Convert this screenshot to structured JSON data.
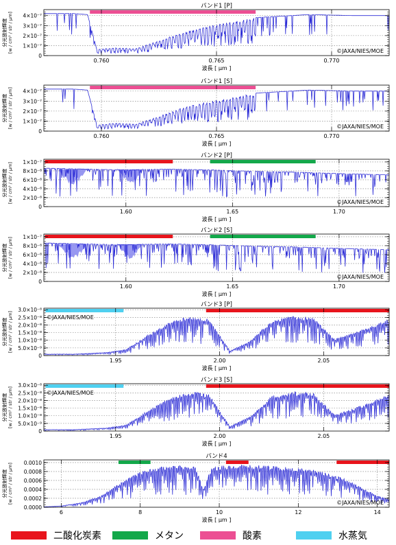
{
  "figure": {
    "copyright": "©JAXA/NIES/MOE",
    "line_color": "#2b2bd6",
    "fill_color": "#8c8cf0"
  },
  "legend": {
    "items": [
      {
        "label": "二酸化炭素",
        "color": "#e8141c"
      },
      {
        "label": "メタン",
        "color": "#13a84a"
      },
      {
        "label": "酸素",
        "color": "#ec4f93"
      },
      {
        "label": "水蒸気",
        "color": "#4fd0f0"
      }
    ]
  },
  "chart_data": [
    {
      "type": "line",
      "title": "バンド1 [P]",
      "xlabel": "波長 [ μm ]",
      "ylabel": [
        "分光放射輝度",
        "[w / cm² / str / μm]"
      ],
      "xlim": [
        0.7575,
        0.7725
      ],
      "ylim": [
        0,
        4.6e-07
      ],
      "xticks": [
        0.76,
        0.765,
        0.77
      ],
      "xtick_labels": [
        "0.760",
        "0.765",
        "0.770"
      ],
      "yticks": [
        0,
        1e-07,
        2e-07,
        3e-07,
        4e-07
      ],
      "ytick_labels": [
        "0",
        "1×10⁻⁷",
        "2×10⁻⁷",
        "3×10⁻⁷",
        "4×10⁻⁷"
      ],
      "copyright_position": "bottom-right",
      "bands": [
        {
          "gas": "酸素",
          "x": [
            0.7595,
            0.7667
          ],
          "color": "#ec4f93"
        }
      ],
      "series": [
        {
          "x": [
            0.7575,
            0.7588,
            0.7594,
            0.7598,
            0.7605,
            0.7615,
            0.7625,
            0.7635,
            0.7645,
            0.7655,
            0.7667,
            0.769,
            0.771,
            0.7725
          ],
          "values": [
            4.2e-07,
            4.2e-07,
            4.1e-07,
            6e-08,
            8e-08,
            7e-08,
            1.5e-07,
            2.3e-07,
            2.9e-07,
            3.3e-07,
            3.8e-07,
            4.1e-07,
            4e-07,
            4e-07
          ]
        }
      ]
    },
    {
      "type": "line",
      "title": "バンド1 [S]",
      "xlabel": "波長 [ μm ]",
      "ylabel": [
        "分光放射輝度",
        "[w / cm² / str / μm]"
      ],
      "xlim": [
        0.7575,
        0.7725
      ],
      "ylim": [
        0,
        4.6e-07
      ],
      "xticks": [
        0.76,
        0.765,
        0.77
      ],
      "xtick_labels": [
        "0.760",
        "0.765",
        "0.770"
      ],
      "yticks": [
        0,
        1e-07,
        2e-07,
        3e-07,
        4e-07
      ],
      "ytick_labels": [
        "0",
        "1×10⁻⁷",
        "2×10⁻⁷",
        "3×10⁻⁷",
        "4×10⁻⁷"
      ],
      "copyright_position": "bottom-right",
      "bands": [
        {
          "gas": "酸素",
          "x": [
            0.7595,
            0.7667
          ],
          "color": "#ec4f93"
        }
      ],
      "series": [
        {
          "x": [
            0.7575,
            0.7588,
            0.7594,
            0.7598,
            0.7605,
            0.7615,
            0.7625,
            0.7635,
            0.7645,
            0.7655,
            0.7667,
            0.769,
            0.771,
            0.7725
          ],
          "values": [
            4.2e-07,
            4.2e-07,
            4.1e-07,
            6e-08,
            8e-08,
            7e-08,
            1.5e-07,
            2.3e-07,
            2.9e-07,
            3.3e-07,
            3.8e-07,
            4.1e-07,
            4e-07,
            4e-07
          ]
        }
      ]
    },
    {
      "type": "line",
      "title": "バンド2 [P]",
      "xlabel": "波長 [ μm ]",
      "ylabel": [
        "分光放射輝度",
        "[w / cm² / str / μm]"
      ],
      "xlim": [
        1.5615,
        1.7235
      ],
      "ylim": [
        0,
        1.06e-07
      ],
      "xticks": [
        1.6,
        1.65,
        1.7
      ],
      "xtick_labels": [
        "1.60",
        "1.65",
        "1.70"
      ],
      "yticks": [
        0,
        2e-08,
        4e-08,
        6e-08,
        8e-08,
        1e-07
      ],
      "ytick_labels": [
        "0",
        "2×10⁻⁸",
        "4×10⁻⁸",
        "6×10⁻⁸",
        "8×10⁻⁸",
        "1×10⁻⁷"
      ],
      "copyright_position": "bottom-right",
      "bands": [
        {
          "gas": "二酸化炭素",
          "x": [
            1.562,
            1.622
          ],
          "color": "#e8141c"
        },
        {
          "gas": "メタン",
          "x": [
            1.6395,
            1.689
          ],
          "color": "#13a84a"
        }
      ],
      "series": [
        {
          "x": [
            1.5615,
            1.58,
            1.6,
            1.62,
            1.64,
            1.66,
            1.68,
            1.7,
            1.7235
          ],
          "values": [
            8.6e-08,
            8.4e-08,
            8.2e-08,
            8.4e-08,
            8.2e-08,
            7.9e-08,
            7.7e-08,
            7.4e-08,
            7.1e-08
          ]
        }
      ]
    },
    {
      "type": "line",
      "title": "バンド2 [S]",
      "xlabel": "波長 [ μm ]",
      "ylabel": [
        "分光放射輝度",
        "[w / cm² / str / μm]"
      ],
      "xlim": [
        1.5615,
        1.7235
      ],
      "ylim": [
        0,
        1.06e-07
      ],
      "xticks": [
        1.6,
        1.65,
        1.7
      ],
      "xtick_labels": [
        "1.60",
        "1.65",
        "1.70"
      ],
      "yticks": [
        0,
        2e-08,
        4e-08,
        6e-08,
        8e-08,
        1e-07
      ],
      "ytick_labels": [
        "0",
        "2×10⁻⁸",
        "4×10⁻⁸",
        "6×10⁻⁸",
        "8×10⁻⁸",
        "1×10⁻⁷"
      ],
      "copyright_position": "bottom-right",
      "bands": [
        {
          "gas": "二酸化炭素",
          "x": [
            1.562,
            1.622
          ],
          "color": "#e8141c"
        },
        {
          "gas": "メタン",
          "x": [
            1.6395,
            1.689
          ],
          "color": "#13a84a"
        }
      ],
      "series": [
        {
          "x": [
            1.5615,
            1.58,
            1.6,
            1.62,
            1.64,
            1.66,
            1.68,
            1.7,
            1.7235
          ],
          "values": [
            8.6e-08,
            8.4e-08,
            8.2e-08,
            8.4e-08,
            8.2e-08,
            7.9e-08,
            7.7e-08,
            7.4e-08,
            7.1e-08
          ]
        }
      ]
    },
    {
      "type": "line",
      "title": "バンド3 [P]",
      "xlabel": "波長 [ μm ]",
      "ylabel": [
        "分光放射輝度",
        "[w / cm² / str / μm]"
      ],
      "xlim": [
        1.9155,
        2.0815
      ],
      "ylim": [
        0,
        3.1e-08
      ],
      "xticks": [
        1.95,
        2.0,
        2.05
      ],
      "xtick_labels": [
        "1.95",
        "2.00",
        "2.05"
      ],
      "yticks": [
        0,
        5e-09,
        1e-08,
        1.5e-08,
        2e-08,
        2.5e-08,
        3e-08
      ],
      "ytick_labels": [
        "0",
        "5.0×10⁻⁹",
        "1.0×10⁻⁸",
        "1.5×10⁻⁸",
        "2.0×10⁻⁸",
        "2.5×10⁻⁸",
        "3.0×10⁻⁸"
      ],
      "copyright_position": "top-left",
      "bands": [
        {
          "gas": "水蒸気",
          "x": [
            1.9163,
            1.9538
          ],
          "color": "#4fd0f0"
        },
        {
          "gas": "二酸化炭素",
          "x": [
            1.9935,
            2.0815
          ],
          "color": "#e8141c"
        }
      ],
      "series": [
        {
          "x": [
            1.9155,
            1.93,
            1.945,
            1.955,
            1.965,
            1.975,
            1.985,
            1.995,
            2.005,
            2.015,
            2.025,
            2.035,
            2.045,
            2.055,
            2.065,
            2.0815
          ],
          "values": [
            1e-09,
            1e-09,
            2e-09,
            4e-09,
            1.3e-08,
            2.1e-08,
            2.6e-08,
            2.4e-08,
            3e-09,
            1e-08,
            2.3e-08,
            2.6e-08,
            2.5e-08,
            1.1e-08,
            1.5e-08,
            2.4e-08
          ]
        }
      ]
    },
    {
      "type": "line",
      "title": "バンド3 [S]",
      "xlabel": "波長 [ μm ]",
      "ylabel": [
        "分光放射輝度",
        "[w / cm² / str / μm]"
      ],
      "xlim": [
        1.9155,
        2.0815
      ],
      "ylim": [
        0,
        3.1e-08
      ],
      "xticks": [
        1.95,
        2.0,
        2.05
      ],
      "xtick_labels": [
        "1.95",
        "2.00",
        "2.05"
      ],
      "yticks": [
        0,
        5e-09,
        1e-08,
        1.5e-08,
        2e-08,
        2.5e-08,
        3e-08
      ],
      "ytick_labels": [
        "0",
        "5.0×10⁻⁹",
        "1.0×10⁻⁸",
        "1.5×10⁻⁸",
        "2.0×10⁻⁸",
        "2.5×10⁻⁸",
        "3.0×10⁻⁸"
      ],
      "copyright_position": "top-left",
      "bands": [
        {
          "gas": "水蒸気",
          "x": [
            1.9163,
            1.9538
          ],
          "color": "#4fd0f0"
        },
        {
          "gas": "二酸化炭素",
          "x": [
            1.9935,
            2.0815
          ],
          "color": "#e8141c"
        }
      ],
      "series": [
        {
          "x": [
            1.9155,
            1.93,
            1.945,
            1.955,
            1.965,
            1.975,
            1.985,
            1.995,
            2.005,
            2.015,
            2.025,
            2.035,
            2.045,
            2.055,
            2.065,
            2.0815
          ],
          "values": [
            1e-09,
            1e-09,
            2e-09,
            4e-09,
            1.3e-08,
            2.1e-08,
            2.6e-08,
            2.4e-08,
            3e-09,
            1e-08,
            2.3e-08,
            2.6e-08,
            2.5e-08,
            1.1e-08,
            1.5e-08,
            2.4e-08
          ]
        }
      ]
    },
    {
      "type": "line",
      "title": "バンド4",
      "xlabel": "波長 [ μm ]",
      "ylabel": [
        "分光放射輝度",
        "[w / cm² / str / μm]"
      ],
      "xlim": [
        5.56,
        14.3
      ],
      "ylim": [
        0,
        0.00106
      ],
      "xticks": [
        6,
        8,
        10,
        12,
        14
      ],
      "xtick_labels": [
        "6",
        "8",
        "10",
        "12",
        "14"
      ],
      "yticks": [
        0,
        0.0002,
        0.0004,
        0.0006,
        0.0008,
        0.001
      ],
      "ytick_labels": [
        "0.0000",
        "0.0002",
        "0.0004",
        "0.0006",
        "0.0008",
        "0.0010"
      ],
      "copyright_position": "bottom-right",
      "bands": [
        {
          "gas": "メタン",
          "x": [
            7.45,
            8.26
          ],
          "color": "#13a84a"
        },
        {
          "gas": "二酸化炭素",
          "x": [
            10.17,
            10.74
          ],
          "color": "#e8141c"
        },
        {
          "gas": "二酸化炭素",
          "x": [
            12.97,
            14.3
          ],
          "color": "#e8141c"
        }
      ],
      "series": [
        {
          "x": [
            5.56,
            6.0,
            6.5,
            7.0,
            7.5,
            8.0,
            8.5,
            9.0,
            9.4,
            9.6,
            9.8,
            10.2,
            11.0,
            12.0,
            12.5,
            13.0,
            13.5,
            14.0,
            14.3
          ],
          "values": [
            1e-05,
            3e-05,
            0.0001,
            0.00025,
            0.00055,
            0.0008,
            0.0009,
            0.00093,
            0.0009,
            0.0004,
            0.0009,
            0.00095,
            0.00094,
            0.00088,
            0.00082,
            0.0007,
            0.0005,
            0.00025,
            0.00018
          ]
        }
      ]
    }
  ]
}
